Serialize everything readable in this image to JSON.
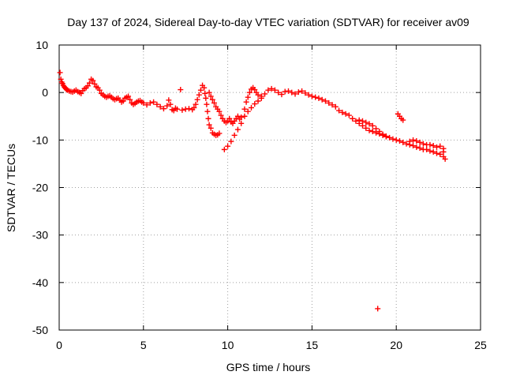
{
  "chart_data": {
    "type": "scatter",
    "title": "Day 137 of 2024, Sidereal Day-to-day VTEC variation (SDTVAR) for receiver av09",
    "xlabel": "GPS time / hours",
    "ylabel": "SDTVAR / TECUs",
    "xlim": [
      0,
      25
    ],
    "ylim": [
      -50,
      10
    ],
    "xticks": [
      0,
      5,
      10,
      15,
      20,
      25
    ],
    "yticks": [
      -50,
      -40,
      -30,
      -20,
      -10,
      0,
      10
    ],
    "grid": true,
    "marker": "plus",
    "color": "#ff0000",
    "series": [
      {
        "name": "av09",
        "points": [
          [
            0.05,
            4.2
          ],
          [
            0.1,
            2.8
          ],
          [
            0.15,
            2.2
          ],
          [
            0.2,
            1.9
          ],
          [
            0.25,
            1.5
          ],
          [
            0.3,
            1.2
          ],
          [
            0.35,
            1.0
          ],
          [
            0.4,
            0.8
          ],
          [
            0.45,
            0.6
          ],
          [
            0.5,
            0.5
          ],
          [
            0.6,
            0.3
          ],
          [
            0.7,
            0.2
          ],
          [
            0.8,
            0.1
          ],
          [
            0.9,
            0.3
          ],
          [
            1.0,
            0.5
          ],
          [
            1.1,
            0.2
          ],
          [
            1.2,
            0.0
          ],
          [
            1.3,
            -0.2
          ],
          [
            1.4,
            0.4
          ],
          [
            1.5,
            0.8
          ],
          [
            1.6,
            1.0
          ],
          [
            1.7,
            1.4
          ],
          [
            1.8,
            2.0
          ],
          [
            1.9,
            2.8
          ],
          [
            2.0,
            2.5
          ],
          [
            2.1,
            1.8
          ],
          [
            2.2,
            1.2
          ],
          [
            2.3,
            1.0
          ],
          [
            2.4,
            0.5
          ],
          [
            2.5,
            -0.2
          ],
          [
            2.6,
            -0.5
          ],
          [
            2.7,
            -0.8
          ],
          [
            2.8,
            -1.0
          ],
          [
            2.9,
            -0.8
          ],
          [
            3.0,
            -0.7
          ],
          [
            3.1,
            -1.0
          ],
          [
            3.2,
            -1.3
          ],
          [
            3.3,
            -1.5
          ],
          [
            3.4,
            -1.3
          ],
          [
            3.5,
            -1.2
          ],
          [
            3.6,
            -1.6
          ],
          [
            3.7,
            -2.0
          ],
          [
            3.8,
            -1.8
          ],
          [
            3.9,
            -1.2
          ],
          [
            4.0,
            -1.0
          ],
          [
            4.1,
            -0.8
          ],
          [
            4.2,
            -1.5
          ],
          [
            4.3,
            -2.2
          ],
          [
            4.4,
            -2.5
          ],
          [
            4.5,
            -2.3
          ],
          [
            4.6,
            -2.0
          ],
          [
            4.7,
            -1.8
          ],
          [
            4.8,
            -1.7
          ],
          [
            4.9,
            -2.0
          ],
          [
            5.0,
            -2.2
          ],
          [
            5.2,
            -2.6
          ],
          [
            5.4,
            -2.2
          ],
          [
            5.6,
            -2.0
          ],
          [
            5.8,
            -2.5
          ],
          [
            6.0,
            -3.0
          ],
          [
            6.2,
            -3.4
          ],
          [
            6.4,
            -2.8
          ],
          [
            6.5,
            -1.6
          ],
          [
            6.6,
            -2.5
          ],
          [
            6.7,
            -3.6
          ],
          [
            6.8,
            -3.8
          ],
          [
            6.9,
            -3.3
          ],
          [
            7.0,
            -3.5
          ],
          [
            7.2,
            0.6
          ],
          [
            7.3,
            -3.7
          ],
          [
            7.5,
            -3.5
          ],
          [
            7.7,
            -3.4
          ],
          [
            7.9,
            -3.6
          ],
          [
            8.0,
            -3.2
          ],
          [
            8.1,
            -2.5
          ],
          [
            8.2,
            -1.5
          ],
          [
            8.3,
            -0.5
          ],
          [
            8.4,
            0.5
          ],
          [
            8.5,
            1.5
          ],
          [
            8.6,
            1.0
          ],
          [
            8.65,
            -0.2
          ],
          [
            8.7,
            -1.2
          ],
          [
            8.75,
            -2.5
          ],
          [
            8.8,
            -4.0
          ],
          [
            8.85,
            -5.5
          ],
          [
            8.9,
            -6.8
          ],
          [
            9.0,
            -7.5
          ],
          [
            9.1,
            -8.5
          ],
          [
            9.2,
            -8.8
          ],
          [
            9.3,
            -9.0
          ],
          [
            9.4,
            -8.9
          ],
          [
            9.5,
            -8.6
          ],
          [
            8.9,
            0.0
          ],
          [
            9.0,
            -0.8
          ],
          [
            9.1,
            -1.5
          ],
          [
            9.2,
            -2.2
          ],
          [
            9.3,
            -3.0
          ],
          [
            9.4,
            -3.5
          ],
          [
            9.5,
            -4.0
          ],
          [
            9.6,
            -4.8
          ],
          [
            9.7,
            -5.5
          ],
          [
            9.8,
            -6.0
          ],
          [
            9.9,
            -6.3
          ],
          [
            10.0,
            -6.0
          ],
          [
            10.1,
            -5.5
          ],
          [
            10.2,
            -6.2
          ],
          [
            10.3,
            -6.5
          ],
          [
            10.4,
            -6.0
          ],
          [
            10.5,
            -5.5
          ],
          [
            10.6,
            -5.0
          ],
          [
            10.7,
            -5.6
          ],
          [
            10.8,
            -5.2
          ],
          [
            9.8,
            -12.0
          ],
          [
            10.0,
            -11.3
          ],
          [
            10.2,
            -10.3
          ],
          [
            10.4,
            -9.0
          ],
          [
            10.6,
            -7.8
          ],
          [
            10.8,
            -6.5
          ],
          [
            11.0,
            -5.0
          ],
          [
            11.2,
            -4.0
          ],
          [
            11.4,
            -3.2
          ],
          [
            11.6,
            -2.4
          ],
          [
            11.8,
            -1.8
          ],
          [
            12.0,
            -1.2
          ],
          [
            11.0,
            -3.5
          ],
          [
            11.1,
            -2.0
          ],
          [
            11.2,
            -1.0
          ],
          [
            11.3,
            0.0
          ],
          [
            11.4,
            0.7
          ],
          [
            11.5,
            1.0
          ],
          [
            11.6,
            0.6
          ],
          [
            11.7,
            0.0
          ],
          [
            11.8,
            -0.5
          ],
          [
            12.0,
            -0.8
          ],
          [
            12.2,
            -0.3
          ],
          [
            12.4,
            0.5
          ],
          [
            12.6,
            0.8
          ],
          [
            12.8,
            0.5
          ],
          [
            13.0,
            0.0
          ],
          [
            13.2,
            -0.4
          ],
          [
            13.4,
            0.2
          ],
          [
            13.6,
            0.3
          ],
          [
            13.8,
            0.0
          ],
          [
            14.0,
            -0.3
          ],
          [
            14.2,
            0.1
          ],
          [
            14.4,
            0.3
          ],
          [
            14.6,
            -0.1
          ],
          [
            14.8,
            -0.5
          ],
          [
            15.0,
            -0.8
          ],
          [
            15.2,
            -1.0
          ],
          [
            15.4,
            -1.2
          ],
          [
            15.6,
            -1.5
          ],
          [
            15.8,
            -1.8
          ],
          [
            16.0,
            -2.2
          ],
          [
            16.2,
            -2.6
          ],
          [
            16.4,
            -3.0
          ],
          [
            16.6,
            -3.8
          ],
          [
            16.8,
            -4.2
          ],
          [
            17.0,
            -4.5
          ],
          [
            17.2,
            -4.8
          ],
          [
            17.4,
            -5.5
          ],
          [
            17.6,
            -6.0
          ],
          [
            17.8,
            -6.5
          ],
          [
            18.0,
            -7.0
          ],
          [
            18.2,
            -7.5
          ],
          [
            18.4,
            -8.0
          ],
          [
            18.6,
            -8.2
          ],
          [
            18.8,
            -8.5
          ],
          [
            19.0,
            -8.7
          ],
          [
            19.2,
            -9.0
          ],
          [
            19.4,
            -9.2
          ],
          [
            19.6,
            -9.5
          ],
          [
            19.8,
            -9.8
          ],
          [
            20.0,
            -10.0
          ],
          [
            20.2,
            -10.2
          ],
          [
            20.4,
            -10.5
          ],
          [
            20.6,
            -10.8
          ],
          [
            20.8,
            -11.0
          ],
          [
            21.0,
            -11.2
          ],
          [
            21.2,
            -11.5
          ],
          [
            21.4,
            -11.7
          ],
          [
            21.6,
            -12.0
          ],
          [
            21.8,
            -12.0
          ],
          [
            22.0,
            -12.3
          ],
          [
            22.2,
            -12.5
          ],
          [
            22.4,
            -12.8
          ],
          [
            22.6,
            -13.0
          ],
          [
            22.8,
            -13.5
          ],
          [
            17.8,
            -5.8
          ],
          [
            18.0,
            -6.0
          ],
          [
            18.2,
            -6.3
          ],
          [
            18.4,
            -6.6
          ],
          [
            18.6,
            -7.0
          ],
          [
            18.8,
            -7.6
          ],
          [
            19.0,
            -8.2
          ],
          [
            19.2,
            -8.8
          ],
          [
            19.4,
            -9.3
          ],
          [
            20.1,
            -4.5
          ],
          [
            20.2,
            -5.0
          ],
          [
            20.3,
            -5.5
          ],
          [
            20.4,
            -5.8
          ],
          [
            20.8,
            -10.3
          ],
          [
            21.0,
            -10.0
          ],
          [
            21.2,
            -10.2
          ],
          [
            21.4,
            -10.5
          ],
          [
            21.6,
            -10.8
          ],
          [
            21.8,
            -11.0
          ],
          [
            22.0,
            -11.0
          ],
          [
            22.2,
            -11.2
          ],
          [
            22.4,
            -11.5
          ],
          [
            22.6,
            -11.3
          ],
          [
            22.8,
            -11.8
          ],
          [
            22.9,
            -14.0
          ],
          [
            22.8,
            -12.5
          ],
          [
            18.9,
            -45.5
          ]
        ]
      }
    ]
  }
}
